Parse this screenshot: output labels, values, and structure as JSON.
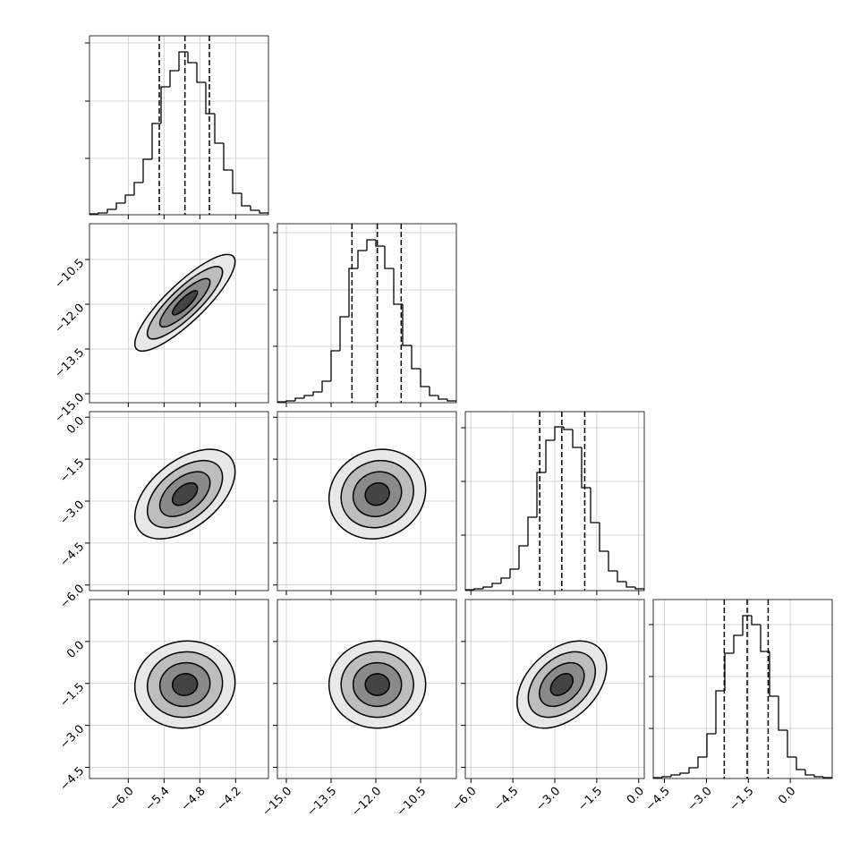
{
  "chart_data": [
    {
      "type": "histogram",
      "bins": [
        -6.65,
        -6.5,
        -6.35,
        -6.2,
        -6.05,
        -5.9,
        -5.75,
        -5.6,
        -5.45,
        -5.3,
        -5.15,
        -5.0,
        -4.85,
        -4.7,
        -4.55,
        -4.4,
        -4.25,
        -4.1,
        -3.95,
        -3.8,
        -3.65
      ],
      "counts": [
        1,
        2,
        6,
        13,
        22,
        36,
        62,
        102,
        143,
        161,
        182,
        170,
        148,
        113,
        80,
        50,
        24,
        10,
        5,
        2
      ],
      "quantiles": [
        -5.48,
        -5.05,
        -4.64
      ],
      "xlim": [
        -6.65,
        -3.65
      ],
      "ylim": [
        0,
        200
      ],
      "xtick_marks": [
        -6.0,
        -5.4,
        -4.8,
        -4.2
      ],
      "ytick_marks": [
        63,
        127,
        192
      ]
    },
    {
      "type": "density",
      "xlim": [
        -6.65,
        -3.65
      ],
      "ylim": [
        -15.3,
        -9.3
      ],
      "center": [
        -5.05,
        -11.95
      ],
      "sigma": [
        0.42,
        0.81
      ],
      "correlation": 0.85,
      "levels": [
        0.5,
        1,
        1.5,
        2
      ],
      "xtick_marks": [
        -6.0,
        -5.4,
        -4.8,
        -4.2
      ],
      "yticks": [
        {
          "value": -15,
          "label": "−15.0"
        },
        {
          "value": -13.5,
          "label": "−13.5"
        },
        {
          "value": -12,
          "label": "−12.0"
        },
        {
          "value": -10.5,
          "label": "−10.5"
        }
      ]
    },
    {
      "type": "histogram",
      "bins": [
        -15.3,
        -15.0,
        -14.7,
        -14.4,
        -14.1,
        -13.8,
        -13.5,
        -13.2,
        -12.9,
        -12.6,
        -12.3,
        -12.0,
        -11.7,
        -11.4,
        -11.1,
        -10.8,
        -10.5,
        -10.2,
        -9.9,
        -9.6,
        -9.3
      ],
      "counts": [
        1,
        2,
        5,
        8,
        12,
        24,
        58,
        96,
        150,
        170,
        182,
        175,
        150,
        110,
        64,
        38,
        18,
        8,
        4,
        2
      ],
      "quantiles": [
        -12.8,
        -11.95,
        -11.15
      ],
      "xlim": [
        -15.3,
        -9.3
      ],
      "ylim": [
        0,
        200
      ],
      "xtick_marks": [
        -15,
        -13.5,
        -12,
        -10.5
      ],
      "ytick_marks": [
        63,
        126,
        190
      ]
    },
    {
      "type": "density",
      "xlim": [
        -6.65,
        -3.65
      ],
      "ylim": [
        -6.2,
        0.2
      ],
      "center": [
        -5.05,
        -2.75
      ],
      "sigma": [
        0.42,
        0.8
      ],
      "correlation": 0.5,
      "levels": [
        0.5,
        1,
        1.5,
        2
      ],
      "xtick_marks": [
        -6.0,
        -5.4,
        -4.8,
        -4.2
      ],
      "yticks": [
        {
          "value": -6,
          "label": "−6.0"
        },
        {
          "value": -4.5,
          "label": "−4.5"
        },
        {
          "value": -3,
          "label": "−3.0"
        },
        {
          "value": -1.5,
          "label": "−1.5"
        },
        {
          "value": 0,
          "label": "0.0"
        }
      ]
    },
    {
      "type": "density",
      "xlim": [
        -15.3,
        -9.3
      ],
      "ylim": [
        -6.2,
        0.2
      ],
      "center": [
        -11.95,
        -2.75
      ],
      "sigma": [
        0.81,
        0.8
      ],
      "correlation": 0.1,
      "levels": [
        0.5,
        1,
        1.5,
        2
      ],
      "xtick_marks": [
        -15,
        -13.5,
        -12,
        -10.5
      ],
      "ytick_marks": [
        -6,
        -4.5,
        -3,
        -1.5,
        0
      ]
    },
    {
      "type": "histogram",
      "bins": [
        -6.2,
        -5.88,
        -5.56,
        -5.24,
        -4.92,
        -4.6,
        -4.28,
        -3.96,
        -3.64,
        -3.32,
        -3.0,
        -2.68,
        -2.36,
        -2.04,
        -1.72,
        -1.4,
        -1.08,
        -0.76,
        -0.44,
        -0.12,
        0.2
      ],
      "counts": [
        1,
        2,
        4,
        8,
        14,
        24,
        50,
        82,
        132,
        168,
        183,
        180,
        160,
        115,
        76,
        44,
        22,
        10,
        4,
        2
      ],
      "quantiles": [
        -3.54,
        -2.75,
        -1.93
      ],
      "xlim": [
        -6.2,
        0.2
      ],
      "ylim": [
        0,
        200
      ],
      "xtick_marks": [
        -6,
        -4.5,
        -3,
        -1.5,
        0
      ],
      "ytick_marks": [
        62,
        122,
        182
      ]
    },
    {
      "type": "density",
      "xlim": [
        -6.65,
        -3.65
      ],
      "ylim": [
        -4.9,
        1.5
      ],
      "center": [
        -5.05,
        -1.54
      ],
      "sigma": [
        0.42,
        0.78
      ],
      "correlation": 0.05,
      "levels": [
        0.5,
        1,
        1.5,
        2
      ],
      "xticks": [
        {
          "value": -6,
          "label": "−6.0"
        },
        {
          "value": -5.4,
          "label": "−5.4"
        },
        {
          "value": -4.8,
          "label": "−4.8"
        },
        {
          "value": -4.2,
          "label": "−4.2"
        }
      ],
      "yticks": [
        {
          "value": -4.5,
          "label": "−4.5"
        },
        {
          "value": -3,
          "label": "−3.0"
        },
        {
          "value": -1.5,
          "label": "−1.5"
        },
        {
          "value": 0,
          "label": "0.0"
        }
      ]
    },
    {
      "type": "density",
      "xlim": [
        -15.3,
        -9.3
      ],
      "ylim": [
        -4.9,
        1.5
      ],
      "center": [
        -11.95,
        -1.54
      ],
      "sigma": [
        0.81,
        0.78
      ],
      "correlation": 0.0,
      "levels": [
        0.5,
        1,
        1.5,
        2
      ],
      "xticks": [
        {
          "value": -15,
          "label": "−15.0"
        },
        {
          "value": -13.5,
          "label": "−13.5"
        },
        {
          "value": -12,
          "label": "−12.0"
        },
        {
          "value": -10.5,
          "label": "−10.5"
        }
      ],
      "ytick_marks": [
        -4.5,
        -3,
        -1.5,
        0
      ]
    },
    {
      "type": "density",
      "xlim": [
        -6.2,
        0.2
      ],
      "ylim": [
        -4.9,
        1.5
      ],
      "center": [
        -2.75,
        -1.54
      ],
      "sigma": [
        0.8,
        0.78
      ],
      "correlation": 0.4,
      "levels": [
        0.5,
        1,
        1.5,
        2
      ],
      "xticks": [
        {
          "value": -6,
          "label": "−6.0"
        },
        {
          "value": -4.5,
          "label": "−4.5"
        },
        {
          "value": -3,
          "label": "−3.0"
        },
        {
          "value": -1.5,
          "label": "−1.5"
        },
        {
          "value": 0,
          "label": "0.0"
        }
      ],
      "ytick_marks": [
        -4.5,
        -3,
        -1.5,
        0
      ]
    },
    {
      "type": "histogram",
      "bins": [
        -4.9,
        -4.58,
        -4.26,
        -3.94,
        -3.62,
        -3.3,
        -2.98,
        -2.66,
        -2.34,
        -2.02,
        -1.7,
        -1.38,
        -1.06,
        -0.74,
        -0.42,
        -0.1,
        0.22,
        0.54,
        0.86,
        1.18,
        1.5
      ],
      "counts": [
        1,
        2,
        4,
        6,
        12,
        24,
        50,
        98,
        140,
        160,
        182,
        172,
        142,
        92,
        54,
        24,
        10,
        4,
        2,
        1
      ],
      "quantiles": [
        -2.36,
        -1.54,
        -0.79
      ],
      "xlim": [
        -4.9,
        1.5
      ],
      "ylim": [
        0,
        200
      ],
      "xticks": [
        {
          "value": -4.5,
          "label": "−4.5"
        },
        {
          "value": -3,
          "label": "−3.0"
        },
        {
          "value": -1.5,
          "label": "−1.5"
        },
        {
          "value": 0,
          "label": "0.0"
        }
      ],
      "ytick_marks": [
        56,
        114,
        172
      ]
    }
  ]
}
